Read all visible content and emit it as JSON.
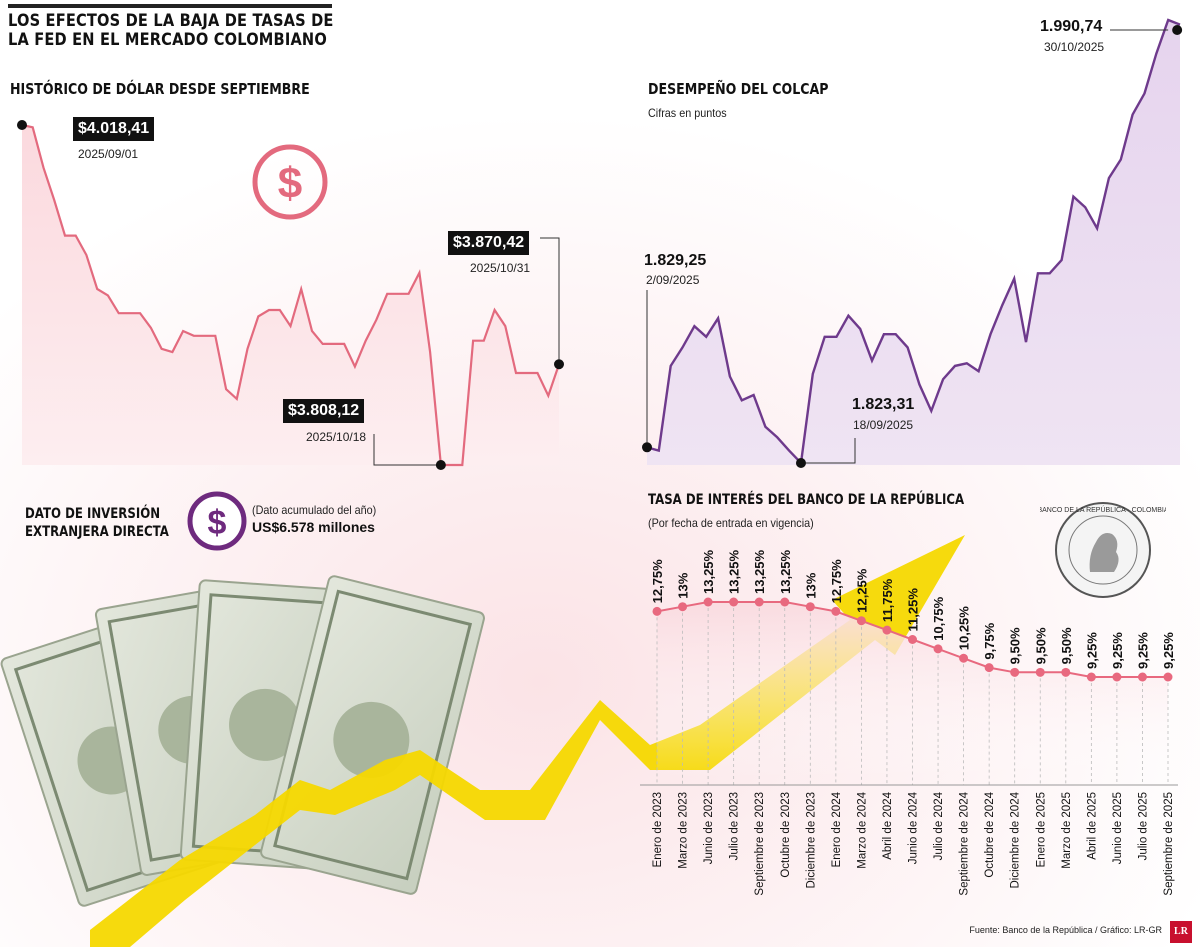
{
  "title": {
    "line1": "LOS EFECTOS DE LA BAJA DE TASAS DE",
    "line2": "LA FED EN EL MERCADO COLOMBIANO"
  },
  "colors": {
    "dollar": "#e36a7e",
    "colcap": "#6e3a8c",
    "rate": "#e8697f",
    "arrow": "#f5d800"
  },
  "dollar": {
    "heading": "HISTÓRICO DE DÓLAR DESDE SEPTIEMBRE",
    "icon": "dollar-circle-icon",
    "start": {
      "value": "$4.018,41",
      "date": "2025/09/01"
    },
    "min": {
      "value": "$3.808,12",
      "date": "2025/10/18"
    },
    "end": {
      "value": "$3.870,42",
      "date": "2025/10/31"
    }
  },
  "colcap": {
    "heading": "DESEMPEÑO DEL COLCAP",
    "subtitle": "Cifras en puntos",
    "start": {
      "value": "1.829,25",
      "date": "2/09/2025"
    },
    "min": {
      "value": "1.823,31",
      "date": "18/09/2025"
    },
    "max": {
      "value": "1.990,74",
      "date": "30/10/2025"
    }
  },
  "fdi": {
    "label_line1": "DATO DE INVERSIÓN",
    "label_line2": "EXTRANJERA DIRECTA",
    "note": "(Dato acumulado del año)",
    "value": "US$6.578 millones",
    "icon": "dollar-circle-icon"
  },
  "rates": {
    "heading": "TASA DE INTERÉS DEL BANCO DE LA REPÚBLICA",
    "subtitle": "(Por fecha de entrada en vigencia)",
    "seal_icon": "banco-republica-seal-icon",
    "seal_text": "BANCO DE LA REPÚBLICA · COLOMBIA"
  },
  "chart_data": [
    {
      "type": "line",
      "title": "HISTÓRICO DE DÓLAR DESDE SEPTIEMBRE",
      "series": [
        {
          "name": "Dólar (COP)",
          "values": [
            4018.41,
            4017.0,
            3992.0,
            3972.0,
            3950.0,
            3950.0,
            3938.0,
            3917.0,
            3913.0,
            3902.0,
            3902.0,
            3902.0,
            3893.0,
            3880.0,
            3878.0,
            3891.0,
            3888.0,
            3888.0,
            3888.0,
            3855.0,
            3849.0,
            3880.0,
            3900.0,
            3904.0,
            3904.0,
            3894.0,
            3917.0,
            3891.0,
            3883.0,
            3883.0,
            3883.0,
            3869.0,
            3885.0,
            3898.0,
            3914.0,
            3914.0,
            3914.0,
            3927.0,
            3878.0,
            3808.12,
            3808.12,
            3808.12,
            3885.0,
            3885.0,
            3904.0,
            3894.0,
            3865.0,
            3865.0,
            3865.0,
            3851.0,
            3870.42
          ]
        }
      ],
      "annotations": [
        {
          "label": "$4.018,41",
          "date": "2025/09/01"
        },
        {
          "label": "$3.808,12",
          "date": "2025/10/18"
        },
        {
          "label": "$3.870,42",
          "date": "2025/10/31"
        }
      ]
    },
    {
      "type": "line",
      "title": "DESEMPEÑO DEL COLCAP",
      "ylabel": "Cifras en puntos",
      "series": [
        {
          "name": "COLCAP",
          "values": [
            1829.25,
            1828.0,
            1860.0,
            1867.0,
            1875.0,
            1871.0,
            1878.0,
            1856.0,
            1847.0,
            1849.0,
            1837.0,
            1833.0,
            1828.0,
            1823.31,
            1857.0,
            1871.0,
            1871.0,
            1879.0,
            1874.0,
            1862.0,
            1872.0,
            1872.0,
            1867.0,
            1853.0,
            1843.0,
            1855.0,
            1860.0,
            1861.0,
            1858.0,
            1872.0,
            1883.0,
            1893.0,
            1869.0,
            1895.0,
            1895.0,
            1900.0,
            1924.0,
            1920.0,
            1912.0,
            1931.0,
            1938.0,
            1955.0,
            1963.0,
            1978.0,
            1990.74,
            1989.0
          ]
        }
      ],
      "annotations": [
        {
          "label": "1.829,25",
          "date": "2/09/2025"
        },
        {
          "label": "1.823,31",
          "date": "18/09/2025"
        },
        {
          "label": "1.990,74",
          "date": "30/10/2025"
        }
      ]
    },
    {
      "type": "line",
      "title": "TASA DE INTERÉS DEL BANCO DE LA REPÚBLICA",
      "subtitle": "(Por fecha de entrada en vigencia)",
      "categories": [
        "Enero de 2023",
        "Marzo de 2023",
        "Junio de 2023",
        "Julio de 2023",
        "Septiembre de 2023",
        "Octubre de 2023",
        "Diciembre de 2023",
        "Enero de 2024",
        "Marzo de 2024",
        "Abril de 2024",
        "Junio de 2024",
        "Julio de 2024",
        "Septiembre de 2024",
        "Octubre de 2024",
        "Diciembre de 2024",
        "Enero de 2025",
        "Marzo de 2025",
        "Abril de 2025",
        "Junio de 2025",
        "Julio de 2025",
        "Septiembre de 2025"
      ],
      "values": [
        12.75,
        13,
        13.25,
        13.25,
        13.25,
        13.25,
        13,
        12.75,
        12.25,
        11.75,
        11.25,
        10.75,
        10.25,
        9.75,
        9.5,
        9.5,
        9.5,
        9.25,
        9.25,
        9.25,
        9.25
      ],
      "labels": [
        "12,75%",
        "13%",
        "13,25%",
        "13,25%",
        "13,25%",
        "13,25%",
        "13%",
        "12,75%",
        "12,25%",
        "11,75%",
        "11,25%",
        "10,75%",
        "10,25%",
        "9,75%",
        "9,50%",
        "9,50%",
        "9,50%",
        "9,25%",
        "9,25%",
        "9,25%",
        "9,25%"
      ]
    }
  ],
  "footer": {
    "source": "Fuente: Banco de la República / Gráfico: LR-GR",
    "logo": "LR"
  }
}
